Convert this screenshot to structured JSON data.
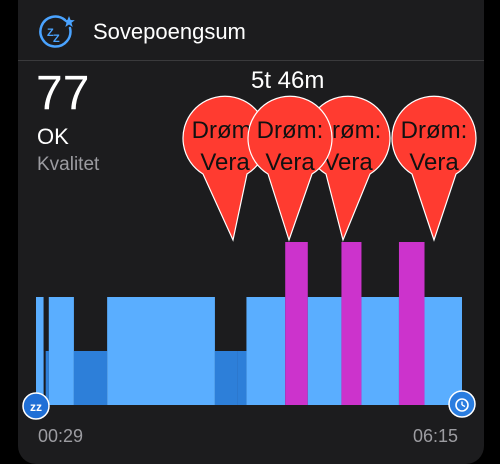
{
  "header": {
    "title": "Sovepoengsum",
    "icon": "sleep-zz-star-icon"
  },
  "score": {
    "value": "77",
    "status": "OK",
    "quality_label": "Kvalitet"
  },
  "duration": "5t 46m",
  "markers": [
    {
      "label_line1": "Drøm:",
      "label_line2": "Vera"
    },
    {
      "label_line1": "Drøm:",
      "label_line2": "Vera"
    },
    {
      "label_line1": "Drøm:",
      "label_line2": "Vera"
    },
    {
      "label_line1": "Drøm:",
      "label_line2": "Vera"
    }
  ],
  "timeline": {
    "start": "00:29",
    "end": "06:15",
    "start_icon": "sleep-zz-icon",
    "end_icon": "alarm-clock-icon"
  },
  "colors": {
    "card_bg": "#1c1c1e",
    "light_sleep": "#5aaeff",
    "deep_sleep": "#2d7fd9",
    "rem_dream": "#cc33cc",
    "marker_red": "#ff3b30",
    "start_icon_bg": "#1f6fd6",
    "end_icon_bg": "#2a7de0"
  },
  "chart_data": {
    "type": "bar",
    "x_range": [
      "00:29",
      "06:15"
    ],
    "stages": [
      "light",
      "deep",
      "rem"
    ],
    "segments": [
      {
        "start": 0.0,
        "end": 0.018,
        "stage": "light"
      },
      {
        "start": 0.018,
        "end": 0.03,
        "stage": "deep"
      },
      {
        "start": 0.03,
        "end": 0.089,
        "stage": "light"
      },
      {
        "start": 0.089,
        "end": 0.167,
        "stage": "deep"
      },
      {
        "start": 0.167,
        "end": 0.42,
        "stage": "light"
      },
      {
        "start": 0.42,
        "end": 0.472,
        "stage": "deep"
      },
      {
        "start": 0.472,
        "end": 0.494,
        "stage": "deep"
      },
      {
        "start": 0.494,
        "end": 0.585,
        "stage": "light"
      },
      {
        "start": 0.585,
        "end": 0.638,
        "stage": "rem"
      },
      {
        "start": 0.638,
        "end": 0.717,
        "stage": "light"
      },
      {
        "start": 0.717,
        "end": 0.764,
        "stage": "rem"
      },
      {
        "start": 0.764,
        "end": 0.852,
        "stage": "light"
      },
      {
        "start": 0.852,
        "end": 0.912,
        "stage": "rem"
      },
      {
        "start": 0.912,
        "end": 1.0,
        "stage": "light"
      }
    ]
  }
}
